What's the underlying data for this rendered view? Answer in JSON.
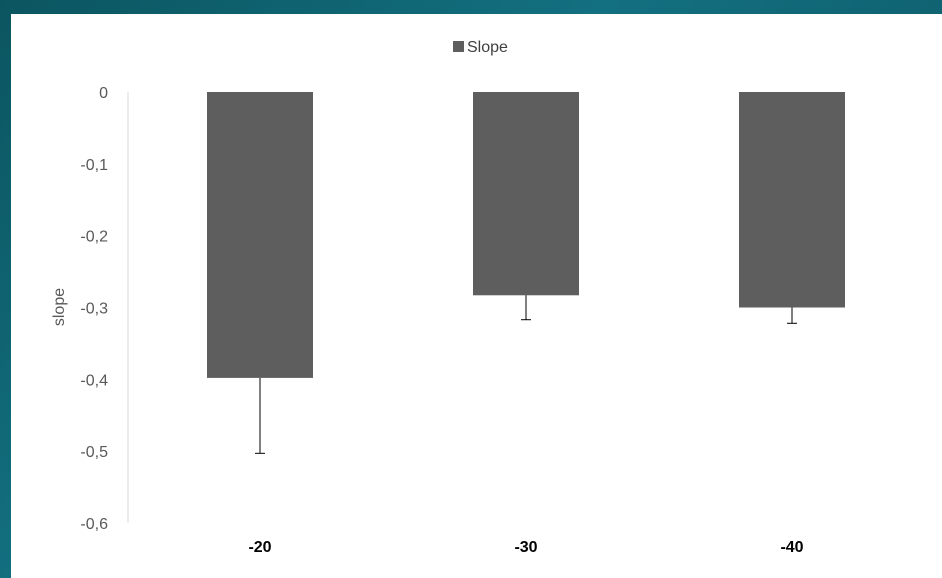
{
  "chart_data": {
    "type": "bar",
    "title": "",
    "xlabel": "",
    "ylabel": "slope",
    "categories": [
      "-20",
      "-30",
      "-40"
    ],
    "series": [
      {
        "name": "Slope",
        "values": [
          -0.398,
          -0.283,
          -0.3
        ],
        "error_lower": [
          0.105,
          0.034,
          0.022
        ],
        "color": "#5e5e5e"
      }
    ],
    "ylim": [
      -0.6,
      0
    ],
    "yticks": [
      "0",
      "-0,1",
      "-0,2",
      "-0,3",
      "-0,4",
      "-0,5",
      "-0,6"
    ],
    "ytick_values": [
      0,
      -0.1,
      -0.2,
      -0.3,
      -0.4,
      -0.5,
      -0.6
    ],
    "legend": {
      "position": "top",
      "labels": [
        "Slope"
      ]
    },
    "grid": false
  }
}
